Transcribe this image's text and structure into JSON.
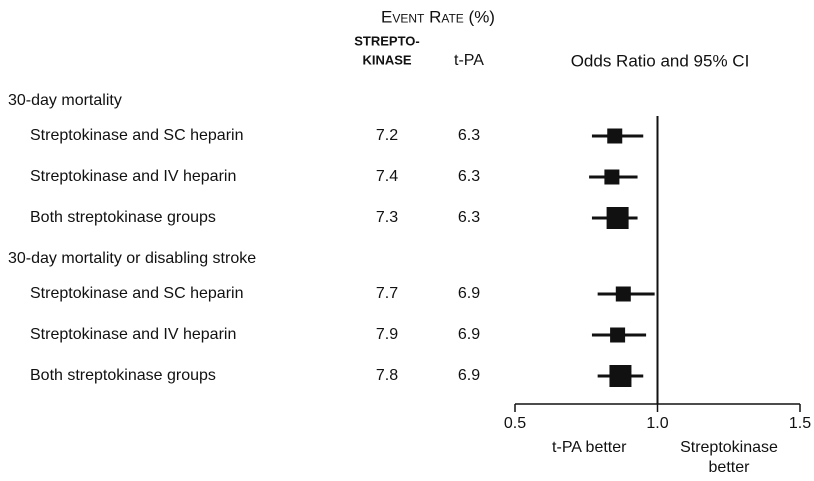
{
  "chart_data": {
    "type": "forest",
    "header": "Event Rate (%)",
    "columns": [
      [
        "STREPTO-",
        "KINASE"
      ],
      [
        "t-PA"
      ]
    ],
    "plot_title": "Odds Ratio and 95% CI",
    "groups": [
      {
        "label": "30-day mortality",
        "rows": [
          {
            "label": "Streptokinase and SC heparin",
            "streptokinase": 7.2,
            "tpa": 6.3,
            "or": 0.85,
            "ci": [
              0.77,
              0.95
            ],
            "pooled": false
          },
          {
            "label": "Streptokinase and IV heparin",
            "streptokinase": 7.4,
            "tpa": 6.3,
            "or": 0.84,
            "ci": [
              0.76,
              0.93
            ],
            "pooled": false
          },
          {
            "label": "Both streptokinase groups",
            "streptokinase": 7.3,
            "tpa": 6.3,
            "or": 0.86,
            "ci": [
              0.77,
              0.93
            ],
            "pooled": true
          }
        ]
      },
      {
        "label": "30-day mortality or disabling stroke",
        "rows": [
          {
            "label": "Streptokinase and SC heparin",
            "streptokinase": 7.7,
            "tpa": 6.9,
            "or": 0.88,
            "ci": [
              0.79,
              0.99
            ],
            "pooled": false
          },
          {
            "label": "Streptokinase and IV heparin",
            "streptokinase": 7.9,
            "tpa": 6.9,
            "or": 0.86,
            "ci": [
              0.77,
              0.96
            ],
            "pooled": false
          },
          {
            "label": "Both streptokinase groups",
            "streptokinase": 7.8,
            "tpa": 6.9,
            "or": 0.87,
            "ci": [
              0.79,
              0.95
            ],
            "pooled": true
          }
        ]
      }
    ],
    "xlim": [
      0.5,
      1.5
    ],
    "xticks": [
      0.5,
      {
        "value": 1,
        "label": "1.0"
      },
      1.5
    ],
    "reference_line": 1,
    "left_label": [
      "t-PA better"
    ],
    "right_label": [
      "Streptokinase",
      "better"
    ],
    "color": "#111111"
  }
}
